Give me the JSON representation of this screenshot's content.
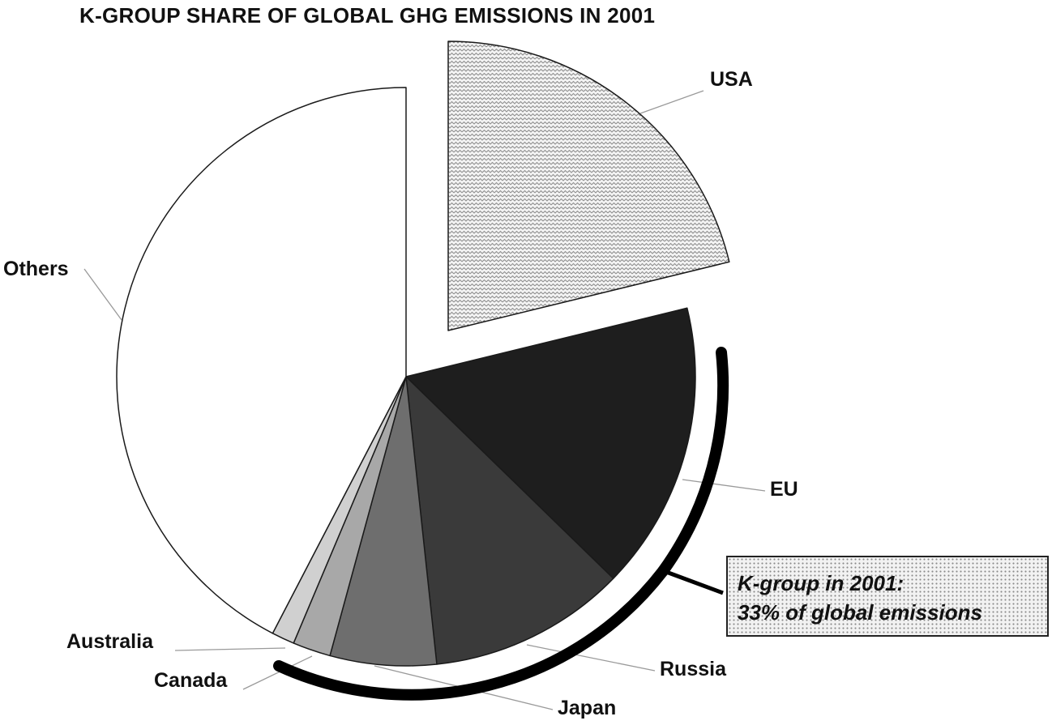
{
  "chart_data": {
    "type": "pie",
    "title": "K-GROUP SHARE OF GLOBAL GHG EMISSIONS IN 2001",
    "slices": [
      {
        "label": "USA",
        "value": 25,
        "color": "#f4f4f4",
        "pattern": "zigzag",
        "exploded": true
      },
      {
        "label": "EU",
        "value": 19,
        "color": "#1e1e1e"
      },
      {
        "label": "Russia",
        "value": 13,
        "color": "#3a3a3a"
      },
      {
        "label": "Japan",
        "value": 7,
        "color": "#6e6e6e"
      },
      {
        "label": "Canada",
        "value": 2.5,
        "color": "#a8a8a8"
      },
      {
        "label": "Australia",
        "value": 1.5,
        "color": "#d0d0d0"
      },
      {
        "label": "Others",
        "value": 50,
        "color": "#ffffff"
      }
    ],
    "start_angle": "12 o'clock",
    "direction": "clockwise",
    "callout": {
      "lines": [
        "K-group in 2001:",
        "33% of global emissions"
      ]
    }
  }
}
